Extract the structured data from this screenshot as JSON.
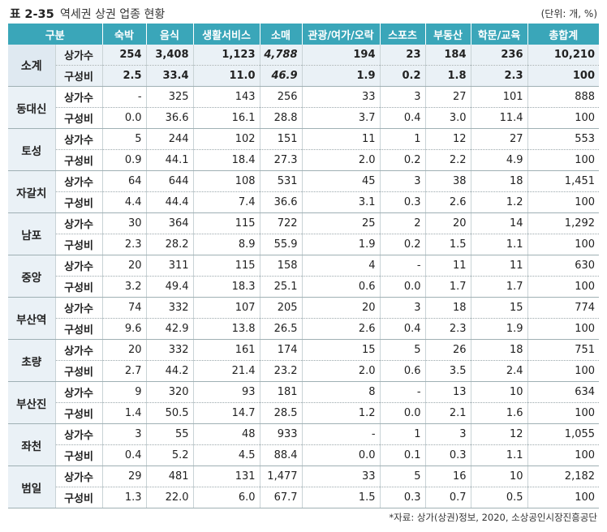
{
  "caption": {
    "table_no": "표 2-35",
    "title": "역세권 상권 업종 현황",
    "unit": "(단위: 개, %)"
  },
  "columns": [
    "구분",
    "숙박",
    "음식",
    "생활서비스",
    "소매",
    "관광/여가/오락",
    "스포츠",
    "부동산",
    "학문/교육",
    "총합계"
  ],
  "metrics": {
    "count": "상가수",
    "ratio": "구성비"
  },
  "groups": [
    {
      "region": "소계",
      "count": [
        "254",
        "3,408",
        "1,123",
        "4,788",
        "194",
        "23",
        "184",
        "236",
        "10,210"
      ],
      "ratio": [
        "2.5",
        "33.4",
        "11.0",
        "46.9",
        "1.9",
        "0.2",
        "1.8",
        "2.3",
        "100"
      ]
    },
    {
      "region": "동대신",
      "count": [
        "-",
        "325",
        "143",
        "256",
        "33",
        "3",
        "27",
        "101",
        "888"
      ],
      "ratio": [
        "0.0",
        "36.6",
        "16.1",
        "28.8",
        "3.7",
        "0.4",
        "3.0",
        "11.4",
        "100"
      ]
    },
    {
      "region": "토성",
      "count": [
        "5",
        "244",
        "102",
        "151",
        "11",
        "1",
        "12",
        "27",
        "553"
      ],
      "ratio": [
        "0.9",
        "44.1",
        "18.4",
        "27.3",
        "2.0",
        "0.2",
        "2.2",
        "4.9",
        "100"
      ]
    },
    {
      "region": "자갈치",
      "count": [
        "64",
        "644",
        "108",
        "531",
        "45",
        "3",
        "38",
        "18",
        "1,451"
      ],
      "ratio": [
        "4.4",
        "44.4",
        "7.4",
        "36.6",
        "3.1",
        "0.3",
        "2.6",
        "1.2",
        "100"
      ]
    },
    {
      "region": "남포",
      "count": [
        "30",
        "364",
        "115",
        "722",
        "25",
        "2",
        "20",
        "14",
        "1,292"
      ],
      "ratio": [
        "2.3",
        "28.2",
        "8.9",
        "55.9",
        "1.9",
        "0.2",
        "1.5",
        "1.1",
        "100"
      ]
    },
    {
      "region": "중앙",
      "count": [
        "20",
        "311",
        "115",
        "158",
        "4",
        "-",
        "11",
        "11",
        "630"
      ],
      "ratio": [
        "3.2",
        "49.4",
        "18.3",
        "25.1",
        "0.6",
        "0.0",
        "1.7",
        "1.7",
        "100"
      ]
    },
    {
      "region": "부산역",
      "count": [
        "74",
        "332",
        "107",
        "205",
        "20",
        "3",
        "18",
        "15",
        "774"
      ],
      "ratio": [
        "9.6",
        "42.9",
        "13.8",
        "26.5",
        "2.6",
        "0.4",
        "2.3",
        "1.9",
        "100"
      ]
    },
    {
      "region": "초량",
      "count": [
        "20",
        "332",
        "161",
        "174",
        "15",
        "5",
        "26",
        "18",
        "751"
      ],
      "ratio": [
        "2.7",
        "44.2",
        "21.4",
        "23.2",
        "2.0",
        "0.6",
        "3.5",
        "2.4",
        "100"
      ]
    },
    {
      "region": "부산진",
      "count": [
        "9",
        "320",
        "93",
        "181",
        "8",
        "-",
        "13",
        "10",
        "634"
      ],
      "ratio": [
        "1.4",
        "50.5",
        "14.7",
        "28.5",
        "1.2",
        "0.0",
        "2.1",
        "1.6",
        "100"
      ]
    },
    {
      "region": "좌천",
      "count": [
        "3",
        "55",
        "48",
        "933",
        "-",
        "1",
        "3",
        "12",
        "1,055"
      ],
      "ratio": [
        "0.4",
        "5.2",
        "4.5",
        "88.4",
        "0.0",
        "0.1",
        "0.3",
        "1.1",
        "100"
      ]
    },
    {
      "region": "범일",
      "count": [
        "29",
        "481",
        "131",
        "1,477",
        "33",
        "5",
        "16",
        "10",
        "2,182"
      ],
      "ratio": [
        "1.3",
        "22.0",
        "6.0",
        "67.7",
        "1.5",
        "0.3",
        "0.7",
        "0.5",
        "100"
      ]
    }
  ],
  "source": "*자료: 상가(상권)정보, 2020, 소상공인시장진흥공단"
}
